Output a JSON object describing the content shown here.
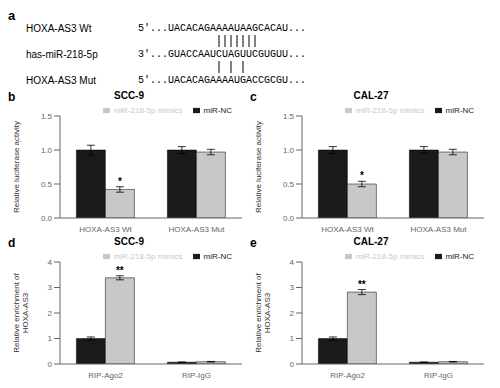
{
  "chart_data": [
    {
      "type": "text",
      "annotations": [
        {
          "text": "a"
        },
        {
          "text": "HOXA-AS3 Wt",
          "sequence": "5'...UACACAGAAAAUAAGCACAU..."
        },
        {
          "text": "has-miR-218-5p",
          "sequence": "3'...GUACCAAUCUAGUUCGUGUU..."
        },
        {
          "text": "HOXA-AS3 Mut",
          "sequence": "5'...UACACAGAAAAUGACCGCGU..."
        }
      ]
    },
    {
      "type": "bar",
      "title": "SCC-9",
      "ylabel": "Relative luciferase activity",
      "categories": [
        "HOXA-AS3 Wt",
        "HOXA-AS3 Mut"
      ],
      "series": [
        {
          "name": "miR-NC",
          "color": "#1a1a1a",
          "values": [
            1.0,
            1.0
          ],
          "errors": [
            0.07,
            0.05
          ]
        },
        {
          "name": "miR-218-5p mimics",
          "color": "#c8c8c8",
          "values": [
            0.42,
            0.97
          ],
          "errors": [
            0.04,
            0.04
          ]
        }
      ],
      "ylim": [
        0,
        1.5
      ],
      "yticks": [
        {
          "value": 0,
          "label": "0.0"
        },
        0.5,
        {
          "value": 1,
          "label": "1.0"
        },
        1.5
      ],
      "legend": "top",
      "annotations": [
        {
          "text": "b"
        },
        {
          "text": "*",
          "category": "HOXA-AS3 Wt",
          "series": "miR-218-5p mimics"
        }
      ]
    },
    {
      "type": "bar",
      "title": "CAL-27",
      "ylabel": "Relative luciferase activity",
      "categories": [
        "HOXA-AS3 Wt",
        "HOXA-AS3 Mut"
      ],
      "series": [
        {
          "name": "miR-NC",
          "color": "#1a1a1a",
          "values": [
            1.0,
            1.0
          ],
          "errors": [
            0.05,
            0.05
          ]
        },
        {
          "name": "miR-218-5p mimics",
          "color": "#c8c8c8",
          "values": [
            0.5,
            0.97
          ],
          "errors": [
            0.04,
            0.04
          ]
        }
      ],
      "ylim": [
        0,
        1.5
      ],
      "yticks": [
        {
          "value": 0,
          "label": "0.0"
        },
        0.5,
        {
          "value": 1,
          "label": "1.0"
        },
        1.5
      ],
      "legend": "top",
      "annotations": [
        {
          "text": "c"
        },
        {
          "text": "*",
          "category": "HOXA-AS3 Wt",
          "series": "miR-218-5p mimics"
        }
      ]
    },
    {
      "type": "bar",
      "title": "SCC-9",
      "ylabel": "Relative enrichment of\nHOXA-AS3",
      "categories": [
        "RIP-Ago2",
        "RIP-IgG"
      ],
      "series": [
        {
          "name": "miR-NC",
          "color": "#1a1a1a",
          "values": [
            1.0,
            0.07
          ],
          "errors": [
            0.06,
            0.01
          ]
        },
        {
          "name": "miR-218-5p mimics",
          "color": "#c8c8c8",
          "values": [
            3.38,
            0.09
          ],
          "errors": [
            0.08,
            0.01
          ]
        }
      ],
      "ylim": [
        0,
        4
      ],
      "yticks": [
        0,
        1,
        2,
        3,
        4
      ],
      "legend": "top",
      "annotations": [
        {
          "text": "d"
        },
        {
          "text": "**",
          "category": "RIP-Ago2",
          "series": "miR-218-5p mimics"
        }
      ]
    },
    {
      "type": "bar",
      "title": "CAL-27",
      "ylabel": "Relative enrichment of\nHOXA-AS3",
      "categories": [
        "RIP-Ago2",
        "RIP-IgG"
      ],
      "series": [
        {
          "name": "miR-NC",
          "color": "#1a1a1a",
          "values": [
            1.0,
            0.07
          ],
          "errors": [
            0.06,
            0.01
          ]
        },
        {
          "name": "miR-218-5p mimics",
          "color": "#c8c8c8",
          "values": [
            2.82,
            0.09
          ],
          "errors": [
            0.1,
            0.01
          ]
        }
      ],
      "ylim": [
        0,
        4
      ],
      "yticks": [
        0,
        1,
        2,
        3,
        4
      ],
      "legend": "top",
      "annotations": [
        {
          "text": "e"
        },
        {
          "text": "**",
          "category": "RIP-Ago2",
          "series": "miR-218-5p mimics"
        }
      ]
    }
  ]
}
